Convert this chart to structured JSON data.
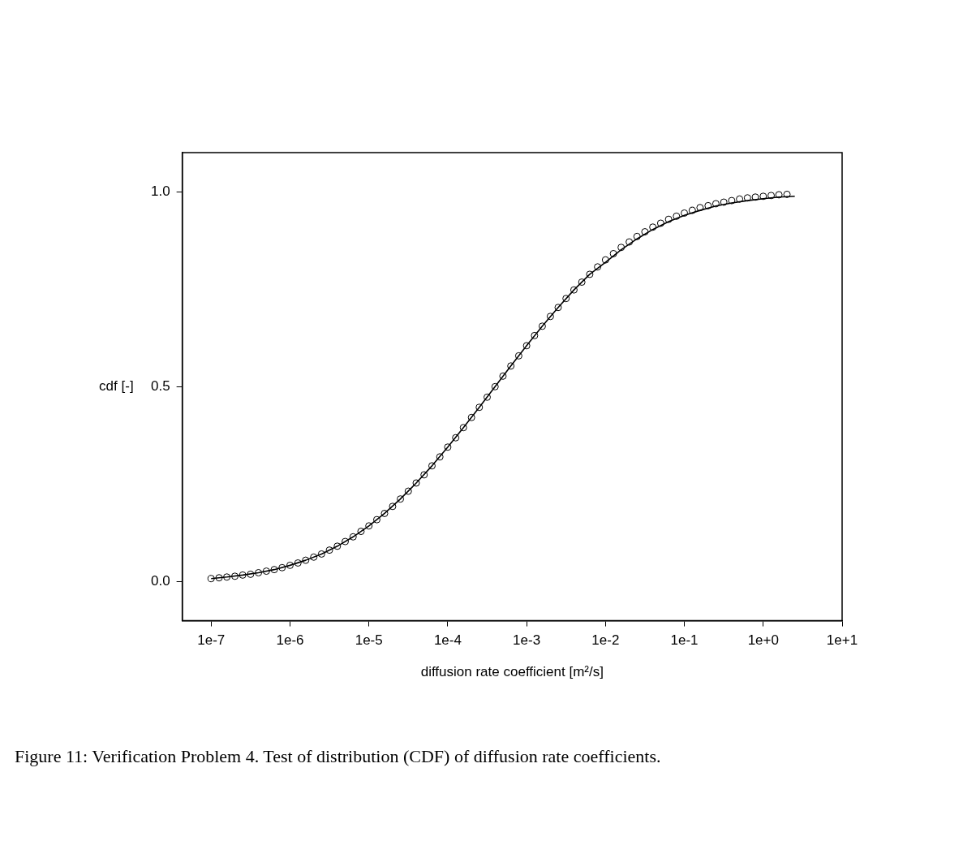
{
  "chart_data": {
    "type": "scatter",
    "xlabel": "diffusion rate coefficient [m²/s]",
    "ylabel": "cdf [-]",
    "log": "x",
    "grid": false,
    "legend": false,
    "xlim": [
      4.3e-08,
      10
    ],
    "ylim": [
      -0.1,
      1.1
    ],
    "xticks": [
      {
        "value": 1e-07,
        "label": "1e-7"
      },
      {
        "value": 1e-06,
        "label": "1e-6"
      },
      {
        "value": 1e-05,
        "label": "1e-5"
      },
      {
        "value": 0.0001,
        "label": "1e-4"
      },
      {
        "value": 0.001,
        "label": "1e-3"
      },
      {
        "value": 0.01,
        "label": "1e-2"
      },
      {
        "value": 0.1,
        "label": "1e-1"
      },
      {
        "value": 1,
        "label": "1e+0"
      },
      {
        "value": 10,
        "label": "1e+1"
      }
    ],
    "yticks": [
      {
        "value": 0,
        "label": "0.0"
      },
      {
        "value": 0.5,
        "label": "0.5"
      },
      {
        "value": 1,
        "label": "1.0"
      }
    ],
    "annotations": [
      "Figure 11: Verification Problem 4. Test of distribution (CDF) of diffusion rate coefficients."
    ],
    "series": [
      {
        "type": "scatter",
        "marker": "circle",
        "color": "#000000",
        "x": [
          1e-07,
          1.26e-07,
          1.58e-07,
          2e-07,
          2.51e-07,
          3.16e-07,
          3.98e-07,
          5.01e-07,
          6.31e-07,
          7.94e-07,
          1e-06,
          1.26e-06,
          1.58e-06,
          2e-06,
          2.51e-06,
          3.16e-06,
          3.98e-06,
          5.01e-06,
          6.31e-06,
          7.94e-06,
          1e-05,
          1.26e-05,
          1.58e-05,
          2e-05,
          2.51e-05,
          3.16e-05,
          3.98e-05,
          5.01e-05,
          6.31e-05,
          7.94e-05,
          0.0001,
          0.000126,
          0.000158,
          0.0002,
          0.000251,
          0.000316,
          0.000398,
          0.000501,
          0.000631,
          0.000794,
          0.001,
          0.00126,
          0.00158,
          0.002,
          0.00251,
          0.00316,
          0.00398,
          0.00501,
          0.00631,
          0.00794,
          0.01,
          0.0126,
          0.0158,
          0.02,
          0.0251,
          0.0316,
          0.0398,
          0.0501,
          0.0631,
          0.0794,
          0.1,
          0.126,
          0.158,
          0.2,
          0.251,
          0.316,
          0.398,
          0.501,
          0.631,
          0.794,
          1,
          1.26,
          1.58,
          2
        ],
        "values": [
          0.008,
          0.01,
          0.012,
          0.014,
          0.017,
          0.019,
          0.023,
          0.027,
          0.031,
          0.036,
          0.042,
          0.048,
          0.055,
          0.063,
          0.071,
          0.081,
          0.091,
          0.103,
          0.115,
          0.129,
          0.143,
          0.159,
          0.175,
          0.193,
          0.212,
          0.232,
          0.253,
          0.274,
          0.297,
          0.32,
          0.345,
          0.369,
          0.395,
          0.421,
          0.447,
          0.473,
          0.5,
          0.527,
          0.553,
          0.579,
          0.605,
          0.631,
          0.655,
          0.68,
          0.703,
          0.726,
          0.748,
          0.768,
          0.788,
          0.807,
          0.825,
          0.841,
          0.857,
          0.871,
          0.885,
          0.897,
          0.909,
          0.919,
          0.929,
          0.937,
          0.945,
          0.952,
          0.959,
          0.964,
          0.969,
          0.973,
          0.977,
          0.981,
          0.984,
          0.986,
          0.988,
          0.99,
          0.992,
          0.993
        ]
      },
      {
        "type": "line",
        "marker": "none",
        "line_style": "solid",
        "color": "#000000",
        "x": [
          1e-07,
          1.58e-07,
          2.51e-07,
          3.98e-07,
          6.31e-07,
          1e-06,
          1.58e-06,
          2.51e-06,
          3.98e-06,
          6.31e-06,
          1e-05,
          1.58e-05,
          2.51e-05,
          3.98e-05,
          6.31e-05,
          0.0001,
          0.000158,
          0.000251,
          0.000398,
          0.000631,
          0.001,
          0.00158,
          0.00251,
          0.00398,
          0.00631,
          0.01,
          0.0158,
          0.0251,
          0.0398,
          0.0631,
          0.1,
          0.158,
          0.251,
          0.398,
          0.631,
          1,
          1.58,
          2.51
        ],
        "values": [
          0.008,
          0.012,
          0.017,
          0.023,
          0.031,
          0.042,
          0.055,
          0.071,
          0.091,
          0.115,
          0.143,
          0.175,
          0.212,
          0.253,
          0.297,
          0.345,
          0.395,
          0.447,
          0.5,
          0.553,
          0.605,
          0.655,
          0.703,
          0.748,
          0.788,
          0.819,
          0.851,
          0.879,
          0.903,
          0.923,
          0.939,
          0.952,
          0.963,
          0.971,
          0.977,
          0.982,
          0.986,
          0.988
        ]
      }
    ]
  }
}
